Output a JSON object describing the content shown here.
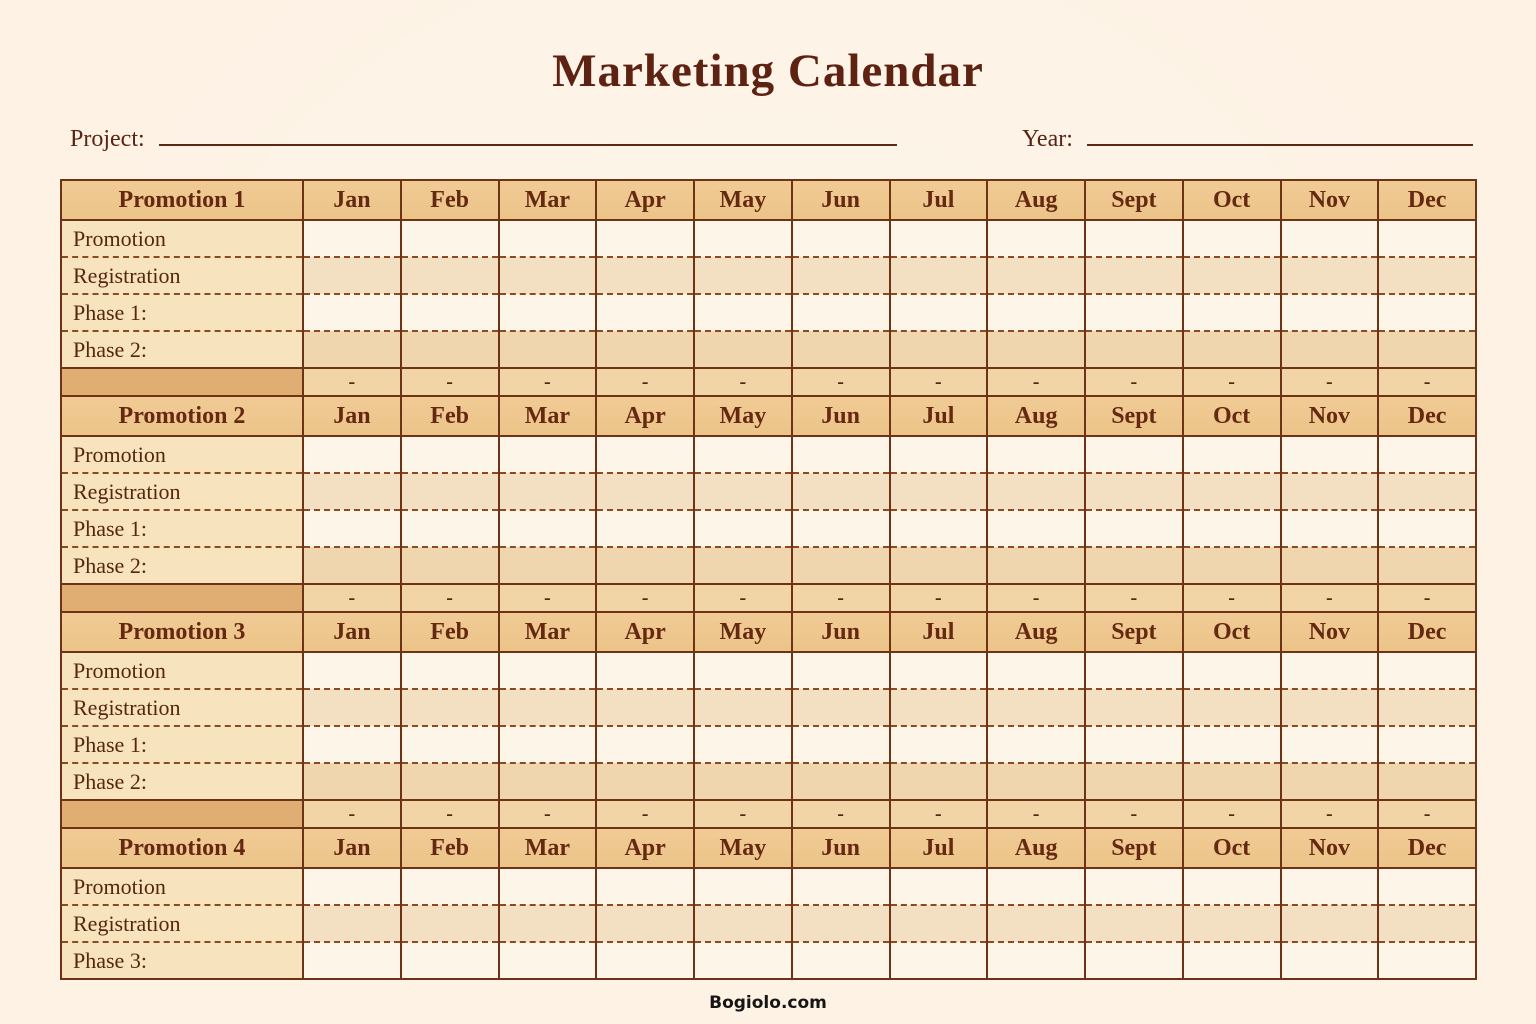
{
  "page": {
    "title": "Marketing Calendar",
    "footer": "Bogiolo.com"
  },
  "fields": {
    "project_label": "Project:",
    "project_value": "",
    "year_label": "Year:",
    "year_value": ""
  },
  "calendar": {
    "months": [
      "Jan",
      "Feb",
      "Mar",
      "Apr",
      "May",
      "Jun",
      "Jul",
      "Aug",
      "Sept",
      "Oct",
      "Nov",
      "Dec"
    ],
    "separator_dash": "-",
    "sections": [
      {
        "title": "Promotion 1",
        "rows": [
          "Promotion",
          "Registration",
          "Phase 1:",
          "Phase 2:"
        ],
        "has_separator": true
      },
      {
        "title": "Promotion 2",
        "rows": [
          "Promotion",
          "Registration",
          "Phase 1:",
          "Phase 2:"
        ],
        "has_separator": true
      },
      {
        "title": "Promotion 3",
        "rows": [
          "Promotion",
          "Registration",
          "Phase 1:",
          "Phase 2:"
        ],
        "has_separator": true
      },
      {
        "title": "Promotion 4",
        "rows": [
          "Promotion",
          "Registration",
          "Phase 3:"
        ],
        "has_separator": false
      }
    ]
  },
  "colors": {
    "page_background": "#fdf2e4",
    "header_fill": "#eec88f",
    "label_fill": "#f7e3bd",
    "row_plain_fill": "#fdf5e8",
    "row_shaded_fill": "#f3dfc2",
    "row_shaded_dark_fill": "#f0d6ae",
    "separator_label_fill": "#e0ae72",
    "separator_cell_fill": "#f1d5a6",
    "border_solid": "#6e3317",
    "border_dashed": "#8a4a22",
    "title_text": "#5d2211",
    "table_text": "#5a2813",
    "footer_text": "#161616"
  }
}
